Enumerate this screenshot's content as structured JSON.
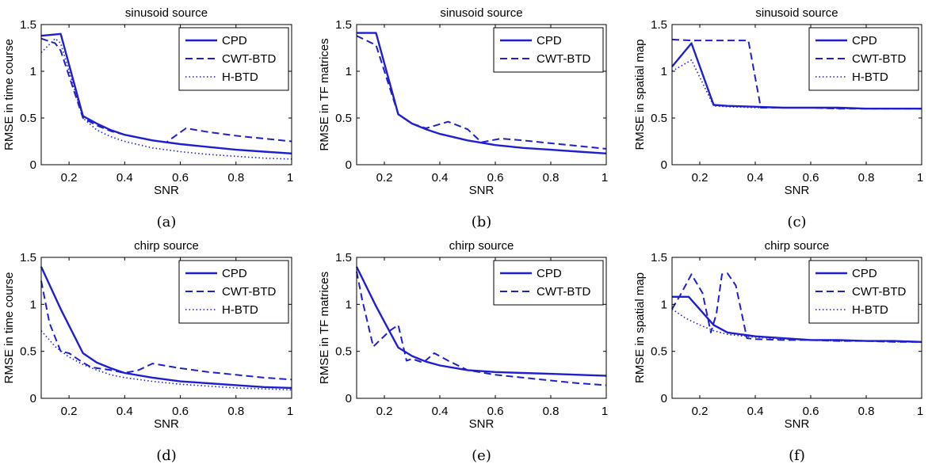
{
  "figure": {
    "colors": {
      "series": "#1f1fd0",
      "axis": "#000000"
    },
    "x_tick_labels": [
      "0.2",
      "0.4",
      "0.6",
      "0.8",
      "1"
    ],
    "y_tick_labels": [
      "0",
      "0.5",
      "1",
      "1.5"
    ]
  },
  "chart_data": [
    {
      "type": "line",
      "panel": "a",
      "title": "sinusoid source",
      "xlabel": "SNR",
      "ylabel": "RMSE in time course",
      "caption": "(a)",
      "xlim": [
        0.1,
        1
      ],
      "ylim": [
        0,
        1.5
      ],
      "legend_position": "top-right",
      "series": [
        {
          "name": "CPD",
          "style": "solid",
          "x": [
            0.1,
            0.17,
            0.25,
            0.3,
            0.35,
            0.4,
            0.5,
            0.6,
            0.7,
            0.8,
            0.9,
            1.0
          ],
          "y": [
            1.38,
            1.4,
            0.52,
            0.44,
            0.37,
            0.32,
            0.26,
            0.22,
            0.19,
            0.16,
            0.14,
            0.12
          ]
        },
        {
          "name": "CWT-BTD",
          "style": "dashed",
          "x": [
            0.1,
            0.15,
            0.17,
            0.25,
            0.3,
            0.35,
            0.4,
            0.5,
            0.55,
            0.62,
            0.7,
            0.8,
            0.9,
            1.0
          ],
          "y": [
            1.35,
            1.3,
            1.22,
            0.5,
            0.42,
            0.36,
            0.32,
            0.26,
            0.24,
            0.39,
            0.35,
            0.31,
            0.28,
            0.25
          ]
        },
        {
          "name": "H-BTD",
          "style": "dotted",
          "x": [
            0.1,
            0.15,
            0.17,
            0.25,
            0.3,
            0.35,
            0.4,
            0.5,
            0.6,
            0.7,
            0.8,
            0.9,
            1.0
          ],
          "y": [
            1.2,
            1.35,
            1.3,
            0.5,
            0.37,
            0.3,
            0.25,
            0.18,
            0.14,
            0.11,
            0.09,
            0.07,
            0.06
          ]
        }
      ]
    },
    {
      "type": "line",
      "panel": "b",
      "title": "sinusoid source",
      "xlabel": "SNR",
      "ylabel": "RMSE in TF matrices",
      "caption": "(b)",
      "xlim": [
        0.1,
        1
      ],
      "ylim": [
        0,
        1.5
      ],
      "legend_position": "top-right",
      "series": [
        {
          "name": "CPD",
          "style": "solid",
          "x": [
            0.1,
            0.17,
            0.25,
            0.3,
            0.35,
            0.4,
            0.5,
            0.6,
            0.7,
            0.8,
            0.9,
            1.0
          ],
          "y": [
            1.41,
            1.41,
            0.54,
            0.44,
            0.38,
            0.33,
            0.26,
            0.21,
            0.18,
            0.16,
            0.14,
            0.12
          ]
        },
        {
          "name": "CWT-BTD",
          "style": "dashed",
          "x": [
            0.1,
            0.17,
            0.25,
            0.3,
            0.35,
            0.43,
            0.5,
            0.55,
            0.62,
            0.7,
            0.8,
            0.9,
            1.0
          ],
          "y": [
            1.38,
            1.28,
            0.54,
            0.44,
            0.39,
            0.46,
            0.38,
            0.24,
            0.28,
            0.26,
            0.23,
            0.2,
            0.17
          ]
        }
      ]
    },
    {
      "type": "line",
      "panel": "c",
      "title": "sinusoid source",
      "xlabel": "SNR",
      "ylabel": "RMSE in spatial map",
      "caption": "(c)",
      "xlim": [
        0.1,
        1
      ],
      "ylim": [
        0,
        1.5
      ],
      "legend_position": "top-right",
      "series": [
        {
          "name": "CPD",
          "style": "solid",
          "x": [
            0.1,
            0.17,
            0.25,
            0.3,
            0.4,
            0.5,
            0.6,
            0.7,
            0.8,
            0.9,
            1.0
          ],
          "y": [
            1.05,
            1.3,
            0.64,
            0.63,
            0.62,
            0.61,
            0.61,
            0.61,
            0.6,
            0.6,
            0.6
          ]
        },
        {
          "name": "CWT-BTD",
          "style": "dashed",
          "x": [
            0.1,
            0.17,
            0.25,
            0.3,
            0.375,
            0.42,
            0.5,
            0.6,
            0.7,
            0.8,
            0.9,
            1.0
          ],
          "y": [
            1.34,
            1.33,
            1.33,
            1.33,
            1.33,
            0.61,
            0.61,
            0.61,
            0.6,
            0.6,
            0.6,
            0.6
          ]
        },
        {
          "name": "H-BTD",
          "style": "dotted",
          "x": [
            0.1,
            0.17,
            0.25,
            0.3,
            0.4,
            0.5,
            0.6,
            0.7,
            0.8,
            0.9,
            1.0
          ],
          "y": [
            1.0,
            1.12,
            0.63,
            0.62,
            0.61,
            0.61,
            0.61,
            0.6,
            0.6,
            0.6,
            0.6
          ]
        }
      ]
    },
    {
      "type": "line",
      "panel": "d",
      "title": "chirp source",
      "xlabel": "SNR",
      "ylabel": "RMSE in time course",
      "caption": "(d)",
      "xlim": [
        0.1,
        1
      ],
      "ylim": [
        0,
        1.5
      ],
      "legend_position": "top-right",
      "series": [
        {
          "name": "CPD",
          "style": "solid",
          "x": [
            0.1,
            0.17,
            0.25,
            0.3,
            0.35,
            0.4,
            0.5,
            0.6,
            0.7,
            0.8,
            0.9,
            1.0
          ],
          "y": [
            1.4,
            0.95,
            0.48,
            0.38,
            0.32,
            0.27,
            0.22,
            0.18,
            0.16,
            0.14,
            0.12,
            0.11
          ]
        },
        {
          "name": "CWT-BTD",
          "style": "dashed",
          "x": [
            0.1,
            0.13,
            0.17,
            0.2,
            0.25,
            0.28,
            0.35,
            0.4,
            0.45,
            0.5,
            0.6,
            0.7,
            0.8,
            0.9,
            1.0
          ],
          "y": [
            1.25,
            0.8,
            0.5,
            0.48,
            0.38,
            0.33,
            0.3,
            0.27,
            0.3,
            0.37,
            0.32,
            0.28,
            0.25,
            0.22,
            0.2
          ]
        },
        {
          "name": "H-BTD",
          "style": "dotted",
          "x": [
            0.1,
            0.15,
            0.2,
            0.25,
            0.3,
            0.35,
            0.4,
            0.5,
            0.6,
            0.7,
            0.8,
            0.9,
            1.0
          ],
          "y": [
            0.72,
            0.55,
            0.44,
            0.36,
            0.3,
            0.25,
            0.22,
            0.18,
            0.15,
            0.13,
            0.11,
            0.1,
            0.09
          ]
        }
      ]
    },
    {
      "type": "line",
      "panel": "e",
      "title": "chirp source",
      "xlabel": "SNR",
      "ylabel": "RMSE in TF matrices",
      "caption": "(e)",
      "xlim": [
        0.1,
        1
      ],
      "ylim": [
        0,
        1.5
      ],
      "legend_position": "top-right",
      "series": [
        {
          "name": "CPD",
          "style": "solid",
          "x": [
            0.1,
            0.17,
            0.25,
            0.3,
            0.35,
            0.4,
            0.5,
            0.6,
            0.7,
            0.8,
            0.9,
            1.0
          ],
          "y": [
            1.4,
            0.98,
            0.54,
            0.45,
            0.39,
            0.35,
            0.3,
            0.28,
            0.27,
            0.26,
            0.25,
            0.24
          ]
        },
        {
          "name": "CWT-BTD",
          "style": "dashed",
          "x": [
            0.1,
            0.12,
            0.16,
            0.22,
            0.25,
            0.28,
            0.3,
            0.34,
            0.38,
            0.43,
            0.5,
            0.6,
            0.7,
            0.8,
            0.9,
            1.0
          ],
          "y": [
            1.35,
            1.05,
            0.55,
            0.72,
            0.78,
            0.4,
            0.42,
            0.38,
            0.48,
            0.4,
            0.3,
            0.25,
            0.22,
            0.19,
            0.16,
            0.14
          ]
        }
      ]
    },
    {
      "type": "line",
      "panel": "f",
      "title": "chirp source",
      "xlabel": "SNR",
      "ylabel": "RMSE in spatial map",
      "caption": "(f)",
      "xlim": [
        0.1,
        1
      ],
      "ylim": [
        0,
        1.5
      ],
      "legend_position": "top-right",
      "series": [
        {
          "name": "CPD",
          "style": "solid",
          "x": [
            0.1,
            0.16,
            0.25,
            0.3,
            0.4,
            0.5,
            0.6,
            0.7,
            0.8,
            0.9,
            1.0
          ],
          "y": [
            1.08,
            1.08,
            0.78,
            0.7,
            0.66,
            0.64,
            0.62,
            0.62,
            0.61,
            0.61,
            0.6
          ]
        },
        {
          "name": "CWT-BTD",
          "style": "dashed",
          "x": [
            0.1,
            0.13,
            0.17,
            0.21,
            0.24,
            0.26,
            0.28,
            0.3,
            0.33,
            0.37,
            0.4,
            0.5,
            0.6,
            0.7,
            0.8,
            0.9,
            1.0
          ],
          "y": [
            0.95,
            1.1,
            1.32,
            1.12,
            0.7,
            0.9,
            1.32,
            1.33,
            1.2,
            0.64,
            0.63,
            0.62,
            0.62,
            0.61,
            0.61,
            0.6,
            0.6
          ]
        },
        {
          "name": "H-BTD",
          "style": "dotted",
          "x": [
            0.1,
            0.15,
            0.2,
            0.25,
            0.3,
            0.4,
            0.5,
            0.6,
            0.7,
            0.8,
            0.9,
            1.0
          ],
          "y": [
            0.95,
            0.85,
            0.78,
            0.72,
            0.68,
            0.65,
            0.63,
            0.62,
            0.61,
            0.61,
            0.6,
            0.6
          ]
        }
      ]
    }
  ]
}
